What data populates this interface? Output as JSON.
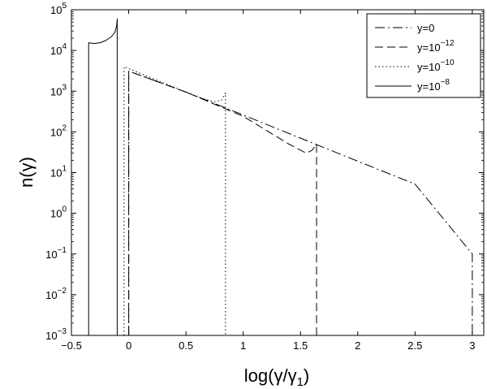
{
  "chart_data": {
    "type": "line",
    "title": "",
    "xlabel": "log(γ/γ1)",
    "xlabel_parts": {
      "main": "log(γ/γ",
      "sub": "1",
      "close": ")"
    },
    "ylabel": "n(γ)",
    "xlim": [
      -0.5,
      3.1
    ],
    "ylim": [
      0.001,
      100000
    ],
    "yscale": "log",
    "grid": false,
    "legend_position": "top-right",
    "x_ticks": [
      {
        "value": -0.5,
        "label": "−0.5"
      },
      {
        "value": 0,
        "label": "0"
      },
      {
        "value": 0.5,
        "label": "0.5"
      },
      {
        "value": 1,
        "label": "1"
      },
      {
        "value": 1.5,
        "label": "1.5"
      },
      {
        "value": 2,
        "label": "2"
      },
      {
        "value": 2.5,
        "label": "2.5"
      },
      {
        "value": 3,
        "label": "3"
      }
    ],
    "y_ticks": [
      {
        "value": 0.001,
        "base": "10",
        "exp": "−3"
      },
      {
        "value": 0.01,
        "base": "10",
        "exp": "−2"
      },
      {
        "value": 0.1,
        "base": "10",
        "exp": "−1"
      },
      {
        "value": 1,
        "base": "10",
        "exp": "0"
      },
      {
        "value": 10,
        "base": "10",
        "exp": "1"
      },
      {
        "value": 100,
        "base": "10",
        "exp": "2"
      },
      {
        "value": 1000,
        "base": "10",
        "exp": "3"
      },
      {
        "value": 10000,
        "base": "10",
        "exp": "4"
      },
      {
        "value": 100000,
        "base": "10",
        "exp": "5"
      }
    ],
    "series": [
      {
        "name": "y=0",
        "legend": {
          "base": "y=0",
          "exp": ""
        },
        "dash": "12,4,2,4",
        "x": [
          0,
          0,
          0.5,
          1,
          1.5,
          2,
          2.5,
          3,
          3
        ],
        "y": [
          0.001,
          3100,
          950,
          260,
          70,
          19,
          5.2,
          0.1,
          0.001
        ]
      },
      {
        "name": "y=10−12",
        "legend": {
          "base": "y=10",
          "exp": "−12"
        },
        "dash": "10,5",
        "x": [
          0,
          0,
          0.5,
          1,
          1.4,
          1.55,
          1.6,
          1.64,
          1.64,
          1.64
        ],
        "y": [
          0.001,
          3100,
          950,
          240,
          50,
          30,
          35,
          50,
          50,
          0.001
        ]
      },
      {
        "name": "y=10−10",
        "legend": {
          "base": "y=10",
          "exp": "−10"
        },
        "dash": "1.5,3",
        "x": [
          -0.04,
          -0.04,
          0.2,
          0.5,
          0.65,
          0.75,
          0.81,
          0.845,
          0.845
        ],
        "y": [
          0.001,
          4000,
          2100,
          950,
          650,
          550,
          600,
          900,
          0.001
        ]
      },
      {
        "name": "y=10−8",
        "legend": {
          "base": "y=10",
          "exp": "−8"
        },
        "dash": "",
        "x": [
          -0.35,
          -0.35,
          -0.3,
          -0.25,
          -0.2,
          -0.15,
          -0.12,
          -0.105,
          -0.1,
          -0.1
        ],
        "y": [
          0.001,
          15500,
          14800,
          15500,
          17500,
          22000,
          28000,
          40000,
          60000,
          0.001
        ]
      }
    ]
  }
}
